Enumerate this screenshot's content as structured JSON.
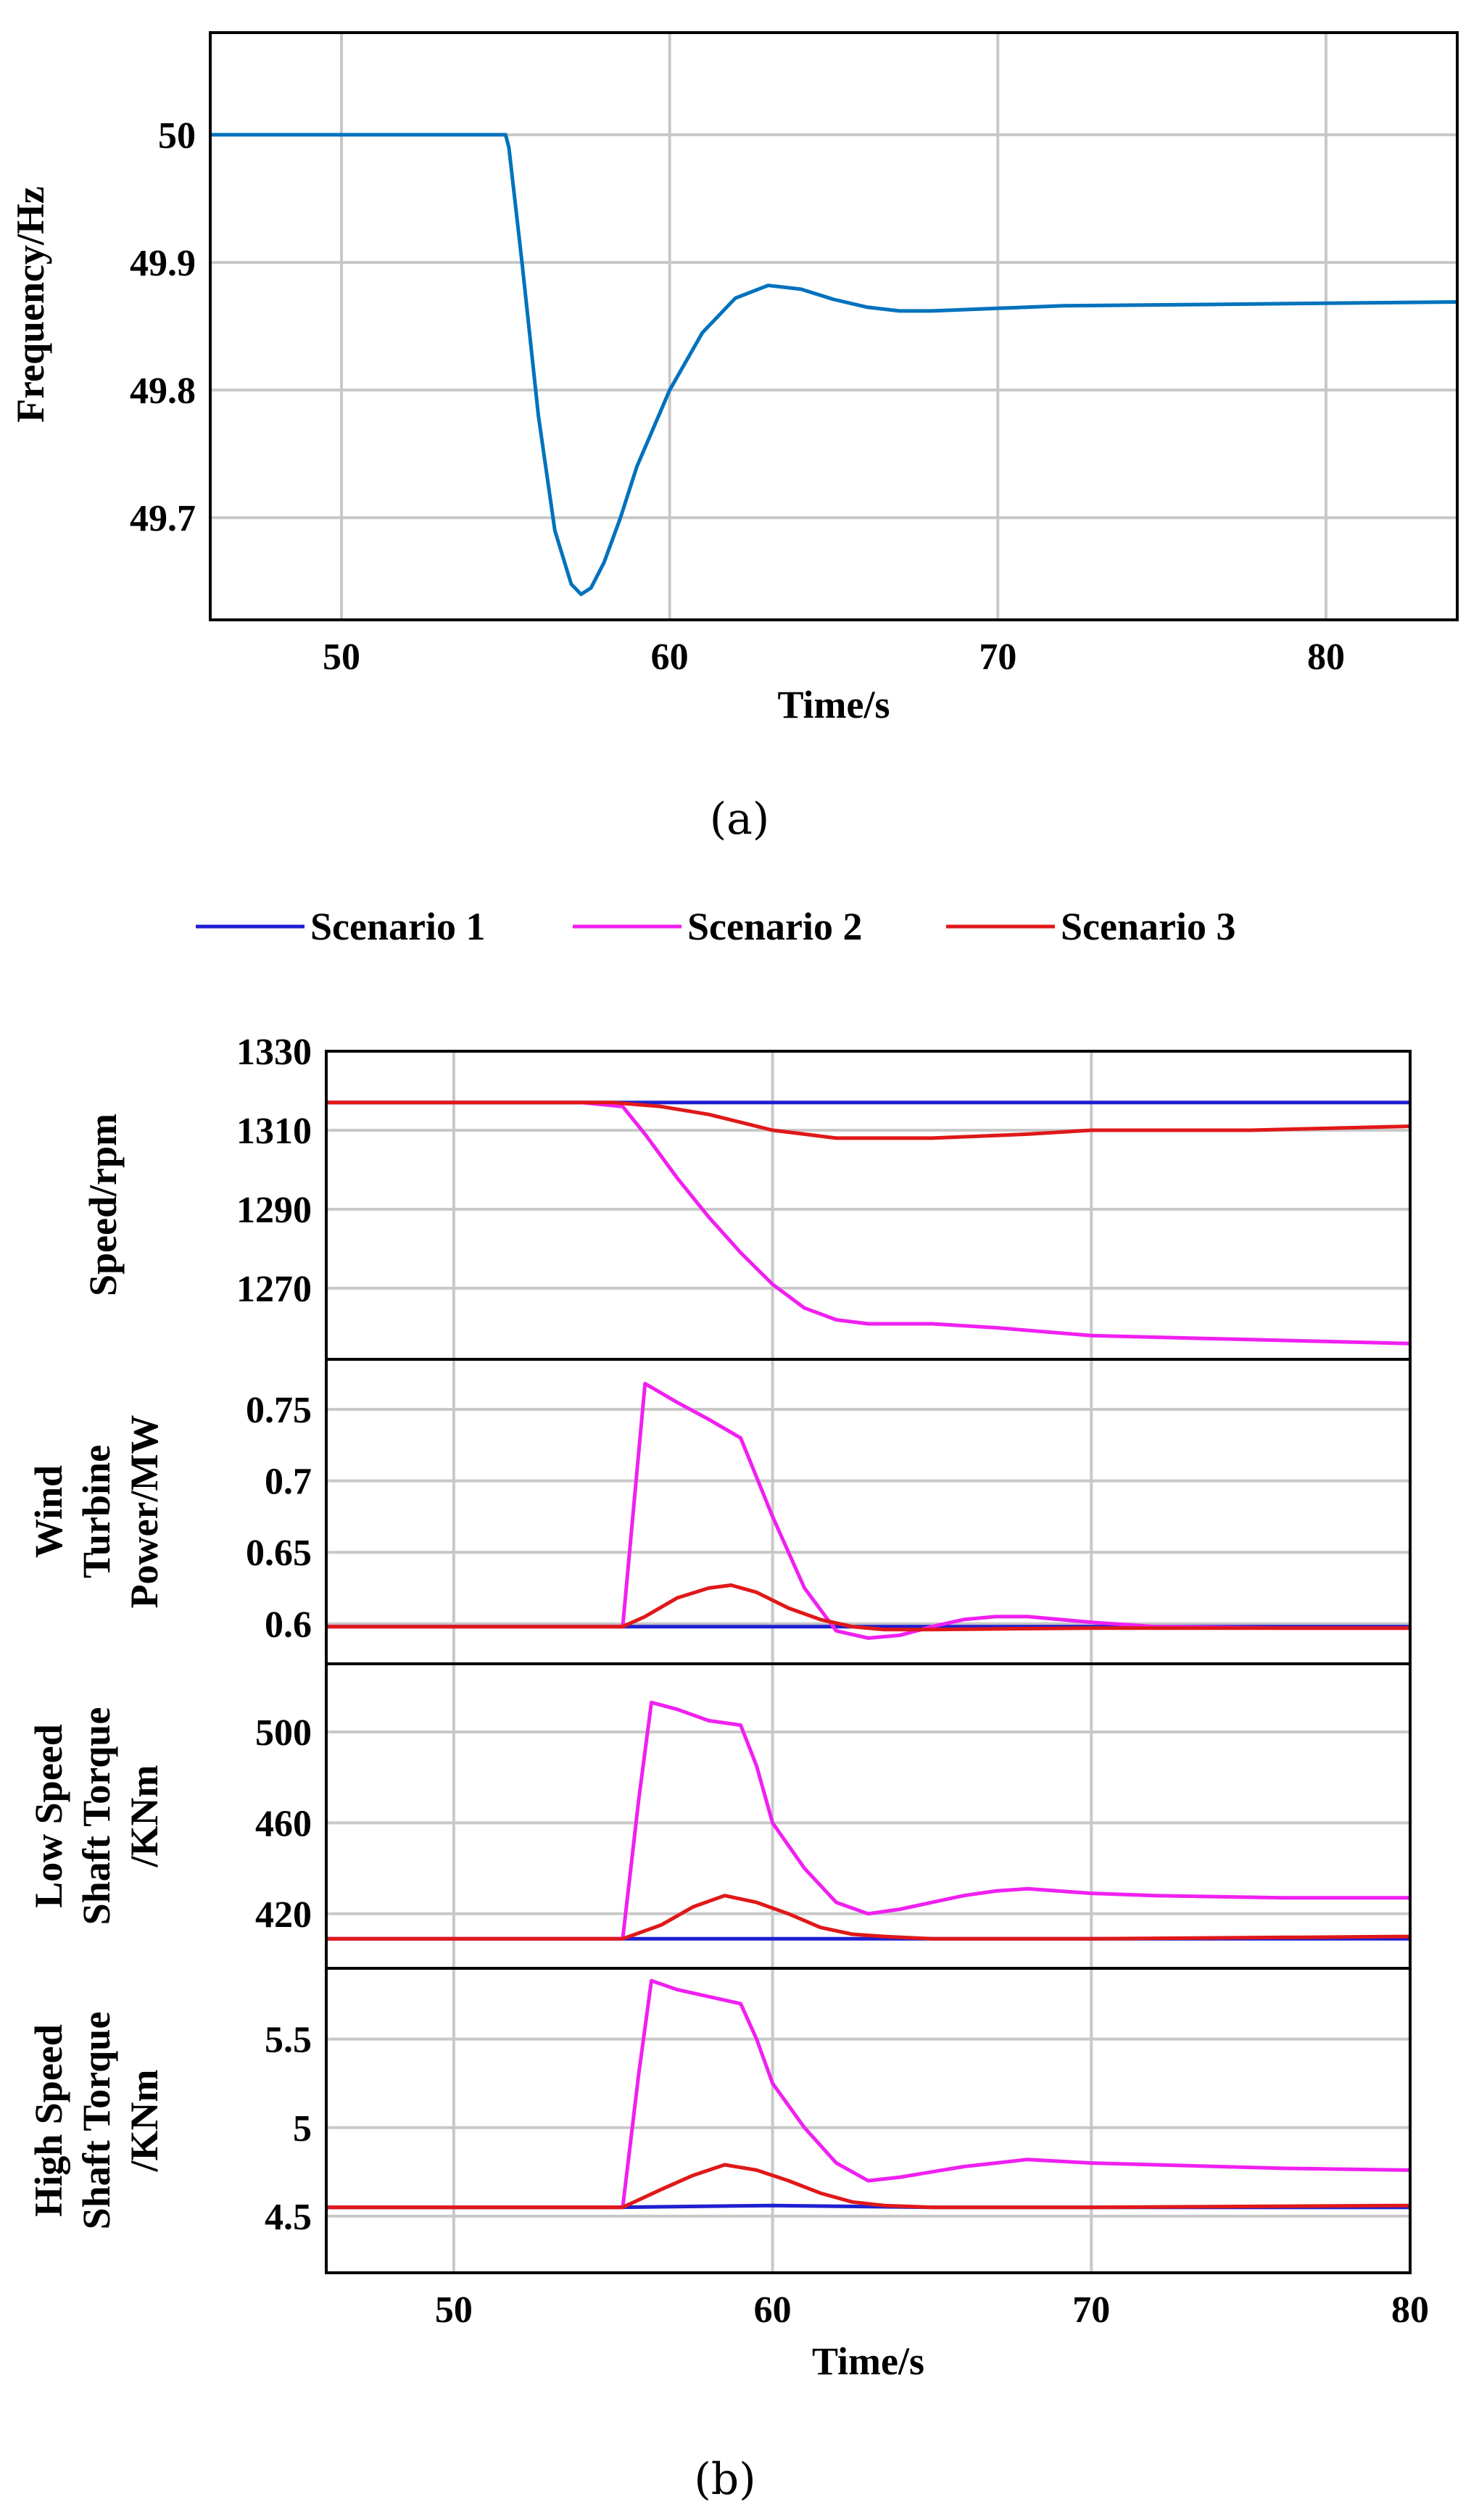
{
  "figure": {
    "caption_a": "(a)",
    "caption_b": "(b)"
  },
  "legend": [
    {
      "name": "Scenario 1",
      "color": "#1f1fd0"
    },
    {
      "name": "Scenario 2",
      "color": "#f020f0"
    },
    {
      "name": "Scenario 3",
      "color": "#e01818"
    }
  ],
  "chart_data": [
    {
      "id": "freq",
      "type": "line",
      "panel": "(a)",
      "xlabel": "Time/s",
      "ylabel": [
        "Frequency/Hz"
      ],
      "xlim": [
        46,
        84
      ],
      "ylim": [
        49.62,
        50.08
      ],
      "xticks": [
        50,
        60,
        70,
        80
      ],
      "xticklabels": [
        "50",
        "60",
        "70",
        "80"
      ],
      "yticks": [
        50,
        49.9,
        49.8,
        49.7
      ],
      "yticklabels": [
        "50",
        "49.9",
        "49.8",
        "49.7"
      ],
      "grid": true,
      "series": [
        {
          "name": "Frequency",
          "color": "#0072bd",
          "x": [
            46,
            55,
            55.1,
            55.5,
            56,
            56.5,
            57,
            57.3,
            57.6,
            58,
            58.5,
            59,
            60,
            61,
            62,
            63,
            64,
            65,
            66,
            67,
            68,
            70,
            72,
            76,
            80,
            84
          ],
          "y": [
            50,
            50,
            49.99,
            49.9,
            49.78,
            49.69,
            49.648,
            49.64,
            49.645,
            49.665,
            49.7,
            49.74,
            49.8,
            49.845,
            49.872,
            49.882,
            49.879,
            49.871,
            49.865,
            49.862,
            49.862,
            49.864,
            49.866,
            49.867,
            49.868,
            49.869
          ]
        }
      ]
    },
    {
      "id": "speed",
      "type": "line",
      "panel": "(b)",
      "xlabel": "",
      "ylabel": [
        "Speed/rpm"
      ],
      "xlim": [
        46,
        80
      ],
      "ylim": [
        1252,
        1330
      ],
      "yticks": [
        1330,
        1310,
        1290,
        1270
      ],
      "yticklabels": [
        "1330",
        "1310",
        "1290",
        "1270"
      ],
      "xticks": [
        50,
        60,
        70,
        80
      ],
      "grid": true,
      "series": [
        {
          "name": "Scenario 1",
          "color": "#1f1fd0",
          "x": [
            46,
            50,
            54,
            56,
            60,
            65,
            70,
            75,
            80
          ],
          "y": [
            1317,
            1317,
            1317,
            1317,
            1317,
            1317,
            1317,
            1317,
            1317
          ]
        },
        {
          "name": "Scenario 2",
          "color": "#f020f0",
          "x": [
            46,
            50,
            54,
            55.3,
            56,
            57,
            58,
            59,
            60,
            61,
            62,
            63,
            65,
            67,
            70,
            75,
            80
          ],
          "y": [
            1317,
            1317,
            1317,
            1316,
            1309,
            1298,
            1288,
            1279,
            1271,
            1265,
            1262,
            1261,
            1261,
            1260,
            1258,
            1257,
            1256
          ]
        },
        {
          "name": "Scenario 3",
          "color": "#e01818",
          "x": [
            46,
            50,
            55,
            56.5,
            58,
            59,
            60,
            61,
            62,
            63,
            65,
            68,
            70,
            75,
            80
          ],
          "y": [
            1317,
            1317,
            1317,
            1316,
            1314,
            1312,
            1310,
            1309,
            1308,
            1308,
            1308,
            1309,
            1310,
            1310,
            1311
          ]
        }
      ]
    },
    {
      "id": "power",
      "type": "line",
      "panel": "(b)",
      "xlabel": "",
      "ylabel": [
        "Wind",
        "Turbine",
        "Power/MW"
      ],
      "xlim": [
        46,
        80
      ],
      "ylim": [
        0.572,
        0.785
      ],
      "yticks": [
        0.75,
        0.7,
        0.65,
        0.6
      ],
      "yticklabels": [
        "0.75",
        "0.7",
        "0.65",
        "0.6"
      ],
      "xticks": [
        50,
        60,
        70,
        80
      ],
      "grid": true,
      "series": [
        {
          "name": "Scenario 1",
          "color": "#1f1fd0",
          "x": [
            46,
            50,
            55,
            60,
            65,
            70,
            75,
            80
          ],
          "y": [
            0.598,
            0.598,
            0.598,
            0.598,
            0.598,
            0.598,
            0.598,
            0.598
          ]
        },
        {
          "name": "Scenario 2",
          "color": "#f020f0",
          "x": [
            46,
            55.3,
            56,
            57,
            58,
            59,
            60,
            61,
            62,
            63,
            64,
            65,
            66,
            67,
            68,
            70,
            72,
            76,
            80
          ],
          "y": [
            0.598,
            0.598,
            0.768,
            0.755,
            0.743,
            0.73,
            0.675,
            0.625,
            0.595,
            0.59,
            0.592,
            0.598,
            0.603,
            0.605,
            0.605,
            0.601,
            0.598,
            0.597,
            0.597
          ]
        },
        {
          "name": "Scenario 3",
          "color": "#e01818",
          "x": [
            46,
            55.3,
            56,
            57,
            58,
            58.7,
            59.5,
            60.5,
            61.5,
            62.5,
            63.5,
            65,
            70,
            80
          ],
          "y": [
            0.598,
            0.598,
            0.605,
            0.618,
            0.625,
            0.627,
            0.622,
            0.611,
            0.603,
            0.598,
            0.596,
            0.596,
            0.597,
            0.597
          ]
        }
      ]
    },
    {
      "id": "lowtorque",
      "type": "line",
      "panel": "(b)",
      "xlabel": "",
      "ylabel": [
        "Low Speed",
        "Shaft Torque",
        "/KNm"
      ],
      "xlim": [
        46,
        80
      ],
      "ylim": [
        396,
        530
      ],
      "yticks": [
        500,
        460,
        420
      ],
      "yticklabels": [
        "500",
        "460",
        "420"
      ],
      "xticks": [
        50,
        60,
        70,
        80
      ],
      "grid": true,
      "series": [
        {
          "name": "Scenario 1",
          "color": "#1f1fd0",
          "x": [
            46,
            50,
            55,
            60,
            65,
            70,
            75,
            80
          ],
          "y": [
            409,
            409,
            409,
            409,
            409,
            409,
            409,
            409
          ]
        },
        {
          "name": "Scenario 2",
          "color": "#f020f0",
          "x": [
            46,
            55.3,
            55.8,
            56.2,
            57,
            58,
            59,
            59.5,
            60,
            61,
            62,
            63,
            64,
            65,
            66,
            67,
            68,
            70,
            72,
            76,
            80
          ],
          "y": [
            409,
            409,
            470,
            513,
            510,
            505,
            503,
            485,
            460,
            440,
            425,
            420,
            422,
            425,
            428,
            430,
            431,
            429,
            428,
            427,
            427
          ]
        },
        {
          "name": "Scenario 3",
          "color": "#e01818",
          "x": [
            46,
            55.3,
            56.5,
            57.5,
            58.5,
            59.5,
            60.5,
            61.5,
            62.5,
            63.5,
            65,
            70,
            80
          ],
          "y": [
            409,
            409,
            415,
            423,
            428,
            425,
            420,
            414,
            411,
            410,
            409,
            409,
            410
          ]
        }
      ]
    },
    {
      "id": "hightorque",
      "type": "line",
      "panel": "(b)",
      "xlabel": "Time/s",
      "ylabel": [
        "High Speed",
        "Shaft Torque",
        "/KNm"
      ],
      "xlim": [
        46,
        80
      ],
      "ylim": [
        4.18,
        5.9
      ],
      "xticks": [
        50,
        60,
        70,
        80
      ],
      "xticklabels": [
        "50",
        "60",
        "70",
        "80"
      ],
      "yticks": [
        5.5,
        5,
        4.5
      ],
      "yticklabels": [
        "5.5",
        "5",
        "4.5"
      ],
      "grid": true,
      "series": [
        {
          "name": "Scenario 1",
          "color": "#1f1fd0",
          "x": [
            46,
            50,
            55,
            60,
            65,
            70,
            75,
            80
          ],
          "y": [
            4.55,
            4.55,
            4.55,
            4.56,
            4.55,
            4.55,
            4.55,
            4.55
          ]
        },
        {
          "name": "Scenario 2",
          "color": "#f020f0",
          "x": [
            46,
            55.3,
            55.8,
            56.2,
            57,
            58,
            59,
            59.5,
            60,
            61,
            62,
            63,
            64,
            65,
            66,
            67,
            68,
            70,
            72,
            76,
            80
          ],
          "y": [
            4.55,
            4.55,
            5.3,
            5.83,
            5.78,
            5.74,
            5.7,
            5.5,
            5.25,
            5.0,
            4.8,
            4.7,
            4.72,
            4.75,
            4.78,
            4.8,
            4.82,
            4.8,
            4.79,
            4.77,
            4.76
          ]
        },
        {
          "name": "Scenario 3",
          "color": "#e01818",
          "x": [
            46,
            55.3,
            56.5,
            57.5,
            58.5,
            59.5,
            60.5,
            61.5,
            62.5,
            63.5,
            65,
            70,
            80
          ],
          "y": [
            4.55,
            4.55,
            4.65,
            4.73,
            4.79,
            4.76,
            4.7,
            4.63,
            4.58,
            4.56,
            4.55,
            4.55,
            4.56
          ]
        }
      ]
    }
  ]
}
